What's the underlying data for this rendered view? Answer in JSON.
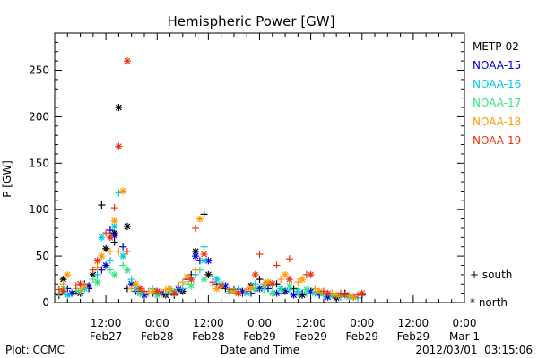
{
  "chart_data": {
    "type": "scatter",
    "title": "Hemispheric Power [GW]",
    "ylabel": "P [GW]",
    "xlabel": "Date and Time",
    "ylim": [
      0,
      290
    ],
    "xlim_hours": [
      0,
      96
    ],
    "yticks": [
      0,
      50,
      100,
      150,
      200,
      250
    ],
    "xticks": [
      {
        "h": 12,
        "time": "12:00",
        "date": "Feb27"
      },
      {
        "h": 24,
        "time": "0:00",
        "date": "Feb28"
      },
      {
        "h": 36,
        "time": "12:00",
        "date": "Feb28"
      },
      {
        "h": 48,
        "time": "0:00",
        "date": "Feb29"
      },
      {
        "h": 60,
        "time": "12:00",
        "date": "Feb29"
      },
      {
        "h": 72,
        "time": "0:00",
        "date": "Feb29"
      },
      {
        "h": 84,
        "time": "12:00",
        "date": "Feb29"
      },
      {
        "h": 96,
        "time": "0:00",
        "date": "Mar 1"
      }
    ],
    "markers": {
      "south": "+",
      "north": "*"
    },
    "series": [
      {
        "name": "METP-02",
        "color": "#000000",
        "south": [
          [
            1,
            8
          ],
          [
            5,
            12
          ],
          [
            8,
            15
          ],
          [
            11,
            105
          ],
          [
            14,
            65
          ],
          [
            17,
            15
          ],
          [
            20,
            12
          ],
          [
            24,
            10
          ],
          [
            28,
            8
          ],
          [
            32,
            30
          ],
          [
            35,
            95
          ],
          [
            40,
            15
          ],
          [
            44,
            10
          ],
          [
            48,
            25
          ],
          [
            52,
            20
          ],
          [
            56,
            15
          ],
          [
            60,
            12
          ],
          [
            64,
            8
          ],
          [
            68,
            10
          ],
          [
            72,
            8
          ]
        ],
        "north": [
          [
            2,
            25
          ],
          [
            6,
            10
          ],
          [
            9,
            30
          ],
          [
            12,
            58
          ],
          [
            14,
            75
          ],
          [
            15,
            210
          ],
          [
            17,
            82
          ],
          [
            20,
            10
          ],
          [
            26,
            8
          ],
          [
            30,
            12
          ],
          [
            33,
            55
          ],
          [
            36,
            30
          ],
          [
            42,
            12
          ],
          [
            46,
            18
          ],
          [
            50,
            20
          ],
          [
            54,
            12
          ],
          [
            58,
            8
          ],
          [
            62,
            10
          ],
          [
            66,
            5
          ],
          [
            70,
            6
          ]
        ]
      },
      {
        "name": "NOAA-15",
        "color": "#0000dd",
        "south": [
          [
            3,
            15
          ],
          [
            7,
            20
          ],
          [
            11,
            35
          ],
          [
            13,
            78
          ],
          [
            16,
            60
          ],
          [
            19,
            12
          ],
          [
            23,
            10
          ],
          [
            27,
            12
          ],
          [
            31,
            25
          ],
          [
            34,
            45
          ],
          [
            38,
            20
          ],
          [
            42,
            14
          ],
          [
            46,
            10
          ],
          [
            50,
            15
          ],
          [
            54,
            12
          ],
          [
            58,
            10
          ],
          [
            62,
            8
          ],
          [
            66,
            6
          ]
        ],
        "north": [
          [
            4,
            10
          ],
          [
            8,
            18
          ],
          [
            12,
            40
          ],
          [
            14,
            72
          ],
          [
            18,
            20
          ],
          [
            21,
            8
          ],
          [
            25,
            10
          ],
          [
            29,
            14
          ],
          [
            33,
            50
          ],
          [
            36,
            45
          ],
          [
            40,
            18
          ],
          [
            44,
            12
          ],
          [
            48,
            15
          ],
          [
            52,
            10
          ],
          [
            56,
            8
          ],
          [
            60,
            12
          ],
          [
            64,
            6
          ]
        ]
      },
      {
        "name": "NOAA-16",
        "color": "#00c8e6",
        "south": [
          [
            2,
            12
          ],
          [
            6,
            18
          ],
          [
            10,
            30
          ],
          [
            13,
            45
          ],
          [
            15,
            118
          ],
          [
            18,
            25
          ],
          [
            22,
            12
          ],
          [
            26,
            10
          ],
          [
            30,
            15
          ],
          [
            33,
            30
          ],
          [
            35,
            60
          ],
          [
            39,
            18
          ],
          [
            43,
            15
          ],
          [
            47,
            20
          ],
          [
            51,
            18
          ],
          [
            55,
            14
          ],
          [
            59,
            10
          ],
          [
            63,
            8
          ],
          [
            67,
            6
          ],
          [
            71,
            5
          ]
        ],
        "north": [
          [
            3,
            8
          ],
          [
            7,
            15
          ],
          [
            11,
            70
          ],
          [
            14,
            82
          ],
          [
            16,
            50
          ],
          [
            19,
            15
          ],
          [
            24,
            12
          ],
          [
            28,
            10
          ],
          [
            32,
            25
          ],
          [
            35,
            45
          ],
          [
            38,
            25
          ],
          [
            41,
            12
          ],
          [
            45,
            10
          ],
          [
            49,
            18
          ],
          [
            53,
            15
          ],
          [
            57,
            12
          ],
          [
            61,
            10
          ],
          [
            65,
            8
          ],
          [
            69,
            6
          ]
        ]
      },
      {
        "name": "NOAA-17",
        "color": "#33e680",
        "south": [
          [
            1,
            10
          ],
          [
            5,
            15
          ],
          [
            9,
            25
          ],
          [
            13,
            35
          ],
          [
            16,
            40
          ],
          [
            19,
            18
          ],
          [
            23,
            15
          ],
          [
            27,
            12
          ],
          [
            31,
            20
          ],
          [
            34,
            35
          ],
          [
            37,
            28
          ],
          [
            41,
            15
          ],
          [
            45,
            12
          ],
          [
            49,
            14
          ],
          [
            53,
            12
          ],
          [
            57,
            10
          ],
          [
            61,
            12
          ],
          [
            65,
            8
          ],
          [
            69,
            6
          ]
        ],
        "north": [
          [
            2,
            15
          ],
          [
            6,
            12
          ],
          [
            10,
            22
          ],
          [
            14,
            30
          ],
          [
            17,
            35
          ],
          [
            20,
            10
          ],
          [
            24,
            8
          ],
          [
            28,
            12
          ],
          [
            32,
            18
          ],
          [
            35,
            25
          ],
          [
            39,
            20
          ],
          [
            43,
            10
          ],
          [
            47,
            14
          ],
          [
            51,
            10
          ],
          [
            55,
            18
          ],
          [
            59,
            14
          ],
          [
            63,
            10
          ],
          [
            67,
            8
          ]
        ]
      },
      {
        "name": "NOAA-18",
        "color": "#ff9900",
        "south": [
          [
            2,
            20
          ],
          [
            6,
            15
          ],
          [
            10,
            38
          ],
          [
            13,
            55
          ],
          [
            15,
            55
          ],
          [
            18,
            15
          ],
          [
            22,
            10
          ],
          [
            26,
            14
          ],
          [
            30,
            22
          ],
          [
            33,
            35
          ],
          [
            37,
            18
          ],
          [
            41,
            10
          ],
          [
            45,
            14
          ],
          [
            49,
            20
          ],
          [
            53,
            25
          ],
          [
            57,
            22
          ],
          [
            61,
            15
          ],
          [
            65,
            10
          ],
          [
            69,
            8
          ]
        ],
        "north": [
          [
            3,
            30
          ],
          [
            7,
            18
          ],
          [
            11,
            50
          ],
          [
            14,
            88
          ],
          [
            16,
            120
          ],
          [
            19,
            20
          ],
          [
            23,
            12
          ],
          [
            27,
            15
          ],
          [
            31,
            28
          ],
          [
            34,
            90
          ],
          [
            38,
            15
          ],
          [
            42,
            12
          ],
          [
            46,
            16
          ],
          [
            50,
            22
          ],
          [
            54,
            30
          ],
          [
            58,
            25
          ],
          [
            62,
            12
          ],
          [
            66,
            8
          ],
          [
            70,
            6
          ]
        ]
      },
      {
        "name": "NOAA-19",
        "color": "#ee3311",
        "south": [
          [
            1,
            14
          ],
          [
            5,
            18
          ],
          [
            9,
            35
          ],
          [
            12,
            75
          ],
          [
            14,
            102
          ],
          [
            17,
            55
          ],
          [
            21,
            12
          ],
          [
            25,
            10
          ],
          [
            29,
            18
          ],
          [
            33,
            80
          ],
          [
            37,
            22
          ],
          [
            41,
            14
          ],
          [
            45,
            12
          ],
          [
            48,
            52
          ],
          [
            52,
            40
          ],
          [
            55,
            47
          ],
          [
            59,
            30
          ],
          [
            63,
            12
          ],
          [
            67,
            10
          ],
          [
            71,
            8
          ]
        ],
        "north": [
          [
            2,
            12
          ],
          [
            6,
            20
          ],
          [
            10,
            45
          ],
          [
            13,
            70
          ],
          [
            15,
            168
          ],
          [
            17,
            260
          ],
          [
            20,
            15
          ],
          [
            24,
            12
          ],
          [
            28,
            10
          ],
          [
            32,
            25
          ],
          [
            35,
            52
          ],
          [
            39,
            18
          ],
          [
            43,
            10
          ],
          [
            47,
            30
          ],
          [
            51,
            20
          ],
          [
            55,
            25
          ],
          [
            60,
            30
          ],
          [
            64,
            10
          ],
          [
            68,
            8
          ],
          [
            72,
            10
          ]
        ]
      }
    ],
    "legend": {
      "placement": "right",
      "south_label": "+ south",
      "north_label": "* north"
    },
    "footer": {
      "left": "Plot: CCMC",
      "center": "Date and Time",
      "right": "2012/03/01  03:15:06"
    }
  }
}
